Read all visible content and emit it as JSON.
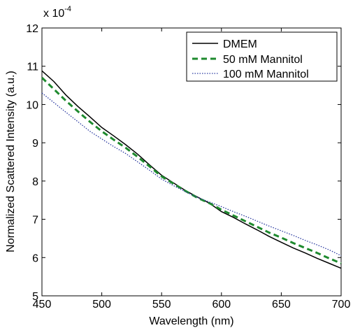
{
  "chart_data": {
    "type": "line",
    "title": "",
    "xlabel": "Wavelength (nm)",
    "ylabel": "Normalized Scattered Intensity (a.u.)",
    "y_multiplier_label": "x 10",
    "y_multiplier_exponent": "-4",
    "xlim": [
      450,
      700
    ],
    "ylim": [
      5,
      12
    ],
    "x_ticks": [
      450,
      500,
      550,
      600,
      650,
      700
    ],
    "y_ticks": [
      5,
      6,
      7,
      8,
      9,
      10,
      11,
      12
    ],
    "grid": false,
    "legend_position": "top-right",
    "series": [
      {
        "name": "DMEM",
        "color": "#000000",
        "style": "solid",
        "x": [
          450,
          460,
          470,
          480,
          490,
          500,
          510,
          520,
          530,
          540,
          550,
          560,
          570,
          580,
          590,
          600,
          610,
          620,
          630,
          640,
          650,
          660,
          670,
          680,
          690,
          700
        ],
        "y": [
          10.88,
          10.6,
          10.25,
          9.95,
          9.68,
          9.4,
          9.18,
          8.95,
          8.7,
          8.42,
          8.15,
          7.95,
          7.75,
          7.58,
          7.42,
          7.2,
          7.05,
          6.88,
          6.72,
          6.55,
          6.4,
          6.25,
          6.12,
          5.98,
          5.85,
          5.72
        ]
      },
      {
        "name": "50 mM Mannitol",
        "color": "#1e8a2e",
        "style": "dashed",
        "x": [
          450,
          460,
          470,
          480,
          490,
          500,
          510,
          520,
          530,
          540,
          550,
          560,
          570,
          580,
          590,
          600,
          610,
          620,
          630,
          640,
          650,
          660,
          670,
          680,
          690,
          700
        ],
        "y": [
          10.7,
          10.4,
          10.1,
          9.82,
          9.55,
          9.3,
          9.08,
          8.87,
          8.63,
          8.38,
          8.12,
          7.93,
          7.74,
          7.56,
          7.42,
          7.25,
          7.1,
          6.95,
          6.8,
          6.65,
          6.52,
          6.38,
          6.25,
          6.12,
          5.98,
          5.85
        ]
      },
      {
        "name": "100 mM Mannitol",
        "color": "#2b3aa0",
        "style": "dotted",
        "x": [
          450,
          460,
          470,
          480,
          490,
          500,
          510,
          520,
          530,
          540,
          550,
          560,
          570,
          580,
          590,
          600,
          610,
          620,
          630,
          640,
          650,
          660,
          670,
          680,
          690,
          700
        ],
        "y": [
          10.3,
          10.05,
          9.8,
          9.55,
          9.3,
          9.1,
          8.9,
          8.72,
          8.5,
          8.28,
          8.05,
          7.88,
          7.72,
          7.57,
          7.45,
          7.33,
          7.2,
          7.08,
          6.95,
          6.82,
          6.7,
          6.58,
          6.45,
          6.33,
          6.2,
          6.05
        ]
      }
    ]
  }
}
